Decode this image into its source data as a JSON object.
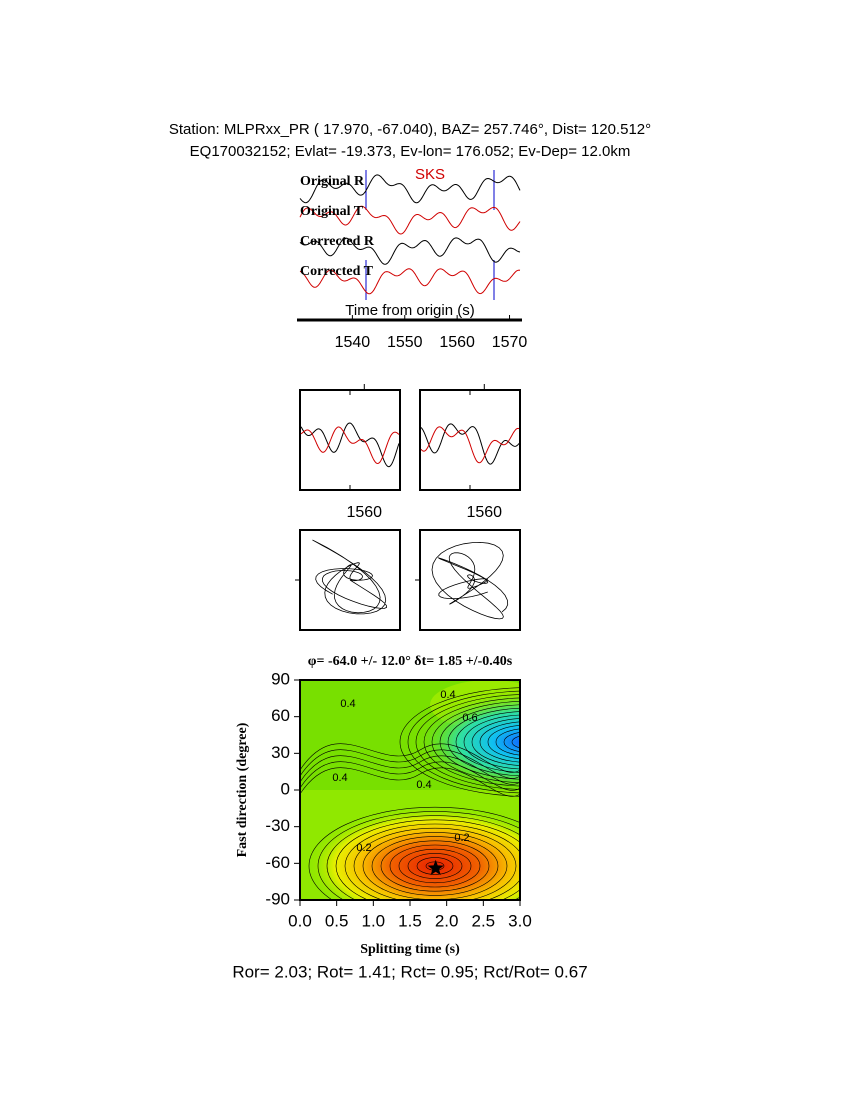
{
  "header": {
    "line1": "Station: MLPRxx_PR (  17.970,  -67.040), BAZ=  257.746°, Dist=  120.512°",
    "line2": "EQ170032152; Evlat= -19.373, Ev-lon= 176.052; Ev-Dep= 12.0km"
  },
  "waveforms": {
    "labels": [
      "Original R",
      "Original T",
      "Corrected R",
      "Corrected T"
    ],
    "phase": "SKS",
    "xlabel": "Time from origin (s)",
    "xlim": [
      1530,
      1572
    ],
    "xticks": [
      1540,
      1550,
      1560,
      1570
    ]
  },
  "windows": [
    {
      "xlim": [
        1542,
        1570
      ],
      "xticks": [
        1560
      ]
    },
    {
      "xlim": [
        1542,
        1570
      ],
      "xticks": [
        1560
      ]
    }
  ],
  "splitting": {
    "title": "φ= -64.0 +/- 12.0° δt= 1.85 +/-0.40s",
    "xlabel": "Splitting time (s)",
    "ylabel": "Fast direction (degree)",
    "xlim": [
      0,
      3
    ],
    "ylim": [
      -90,
      90
    ],
    "xticks": [
      {
        "value": 0,
        "label": "0.0"
      },
      0.5,
      {
        "value": 1,
        "label": "1.0"
      },
      1.5,
      {
        "value": 2,
        "label": "2.0"
      },
      2.5,
      {
        "value": 3,
        "label": "3.0"
      }
    ],
    "yticks": [
      -90,
      -60,
      -30,
      0,
      30,
      60,
      90
    ],
    "best": {
      "x": 1.85,
      "y": -64
    },
    "contour_labels": [
      0.4,
      0.4,
      0.6,
      0.4,
      0.4,
      0.2,
      0.2
    ]
  },
  "footer": "Ror= 2.03; Rot= 1.41; Rct= 0.95; Rct/Rot= 0.67"
}
